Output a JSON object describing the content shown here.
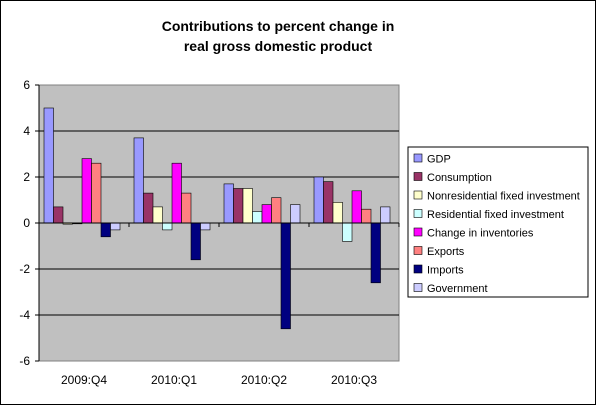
{
  "chart_data": {
    "type": "bar",
    "title": [
      "Contributions to percent change in",
      "real gross domestic product"
    ],
    "categories": [
      "2009:Q4",
      "2010:Q1",
      "2010:Q2",
      "2010:Q3"
    ],
    "ylim": [
      -6,
      6
    ],
    "yticks": [
      "6",
      "4",
      "2",
      "0",
      "-2",
      "-4",
      "-6"
    ],
    "grid": true,
    "legend_position": "right",
    "plot_background": "#c0c0c0",
    "series": [
      {
        "name": "GDP",
        "color": "#9999ff",
        "values": [
          5.0,
          3.7,
          1.7,
          2.0
        ]
      },
      {
        "name": "Consumption",
        "color": "#993366",
        "values": [
          0.7,
          1.3,
          1.5,
          1.8
        ]
      },
      {
        "name": "Nonresidential fixed investment",
        "color": "#ffffcc",
        "values": [
          -0.05,
          0.7,
          1.5,
          0.9
        ]
      },
      {
        "name": "Residential fixed investment",
        "color": "#ccffff",
        "values": [
          0.0,
          -0.3,
          0.5,
          -0.8
        ]
      },
      {
        "name": "Change in inventories",
        "color": "#ff00ff",
        "values": [
          2.8,
          2.6,
          0.8,
          1.4
        ]
      },
      {
        "name": "Exports",
        "color": "#ff8080",
        "values": [
          2.6,
          1.3,
          1.1,
          0.6
        ]
      },
      {
        "name": "Imports",
        "color": "#000080",
        "values": [
          -0.6,
          -1.6,
          -4.6,
          -2.6
        ]
      },
      {
        "name": "Government",
        "color": "#ccccff",
        "values": [
          -0.3,
          -0.3,
          0.8,
          0.7
        ]
      }
    ]
  }
}
